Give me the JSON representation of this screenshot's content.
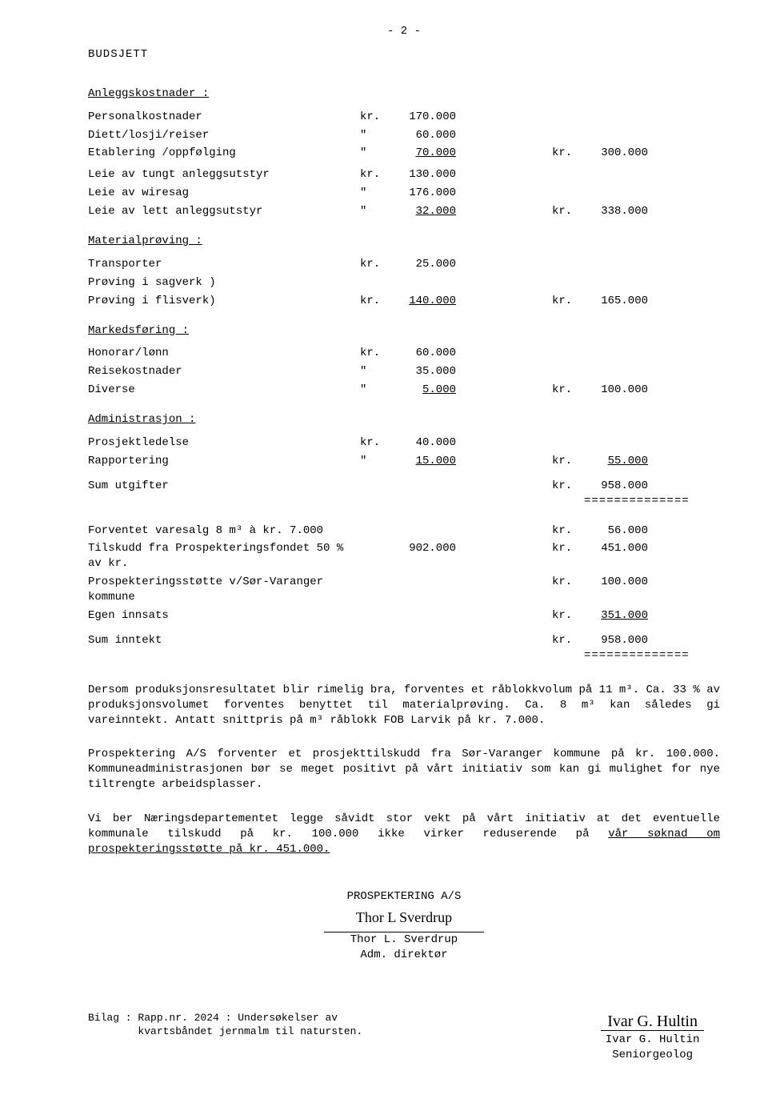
{
  "page_number": "- 2 -",
  "title": "BUDSJETT",
  "sections": {
    "anlegg": {
      "head": "Anleggskostnader :",
      "rows": [
        {
          "desc": "Personalkostnader",
          "c1": "kr.",
          "v1": "170.000",
          "c2": "",
          "v2": ""
        },
        {
          "desc": "Diett/losji/reiser",
          "c1": "\"",
          "v1": "60.000",
          "c2": "",
          "v2": ""
        },
        {
          "desc": "Etablering /oppfølging",
          "c1": "\"",
          "v1": "70.000",
          "c2": "kr.",
          "v2": "300.000",
          "u1": true
        },
        {
          "desc": "",
          "c1": "",
          "v1": "",
          "c2": "",
          "v2": ""
        },
        {
          "desc": "Leie av tungt anleggsutstyr",
          "c1": "kr.",
          "v1": "130.000",
          "c2": "",
          "v2": ""
        },
        {
          "desc": "Leie av wiresag",
          "c1": "\"",
          "v1": "176.000",
          "c2": "",
          "v2": ""
        },
        {
          "desc": "Leie av lett  anleggsutstyr",
          "c1": "\"",
          "v1": "32.000",
          "c2": "kr.",
          "v2": "338.000",
          "u1": true
        }
      ]
    },
    "material": {
      "head": "Materialprøving  :",
      "rows": [
        {
          "desc": "Transporter",
          "c1": "kr.",
          "v1": "25.000",
          "c2": "",
          "v2": ""
        },
        {
          "desc": "Prøving i sagverk )",
          "c1": "",
          "v1": "",
          "c2": "",
          "v2": ""
        },
        {
          "desc": "Prøving i flisverk)",
          "c1": "kr.",
          "v1": "140.000",
          "c2": "kr.",
          "v2": "165.000",
          "u1": true
        }
      ]
    },
    "marked": {
      "head": "Markedsføring   :",
      "rows": [
        {
          "desc": "Honorar/lønn",
          "c1": "kr.",
          "v1": "60.000",
          "c2": "",
          "v2": ""
        },
        {
          "desc": "Reisekostnader",
          "c1": "\"",
          "v1": "35.000",
          "c2": "",
          "v2": ""
        },
        {
          "desc": "Diverse",
          "c1": "\"",
          "v1": "5.000",
          "c2": "kr.",
          "v2": "100.000",
          "u1": true
        }
      ]
    },
    "admin": {
      "head": "Administrasjon  :",
      "rows": [
        {
          "desc": "Prosjektledelse",
          "c1": "kr.",
          "v1": "40.000",
          "c2": "",
          "v2": ""
        },
        {
          "desc": "Rapportering",
          "c1": "\"",
          "v1": "15.000",
          "c2": "kr.",
          "v2": "55.000",
          "u1": true,
          "u2": true
        }
      ]
    }
  },
  "sum_utgifter": {
    "desc": "Sum utgifter",
    "c2": "kr.",
    "v2": "958.000",
    "dbl": "=============="
  },
  "inntekt_rows": [
    {
      "desc": "Forventet varesalg 8 m³ à kr. 7.000",
      "c1": "",
      "v1": "",
      "c2": "kr.",
      "v2": "56.000"
    },
    {
      "desc": "Tilskudd fra Prospekteringsfondet 50 % av kr.",
      "c1": "",
      "v1": "902.000",
      "c2": "kr.",
      "v2": "451.000"
    },
    {
      "desc": "Prospekteringsstøtte v/Sør-Varanger kommune",
      "c1": "",
      "v1": "",
      "c2": "kr.",
      "v2": "100.000"
    },
    {
      "desc": "Egen innsats",
      "c1": "",
      "v1": "",
      "c2": "kr.",
      "v2": "351.000",
      "u2": true
    }
  ],
  "sum_inntekt": {
    "desc": "Sum inntekt",
    "c2": "kr.",
    "v2": "958.000",
    "dbl": "=============="
  },
  "para1": "Dersom produksjonsresultatet blir rimelig bra, forventes et råblokkvolum på 11 m³. Ca. 33 % av produksjonsvolumet forventes benyttet til materialprøving.   Ca. 8 m³ kan således gi vareinntekt.  Antatt snittpris på m³ råblokk FOB Larvik på kr. 7.000.",
  "para2": "Prospektering A/S forventer et prosjekttilskudd fra Sør-Varanger kommune på kr. 100.000.  Kommuneadministrasjonen bør se meget positivt på vårt initiativ som kan gi mulighet for nye tiltrengte arbeidsplasser.",
  "para3_a": "Vi ber Næringsdepartementet legge såvidt stor vekt på vårt initiativ at det eventuelle kommunale tilskudd på kr. 100.000 ikke virker reduserende på ",
  "para3_u": "vår søknad om prospekteringsstøtte på kr. 451.000.",
  "sig": {
    "company": "PROSPEKTERING A/S",
    "name1": "Thor L. Sverdrup",
    "title1": "Adm. direktør",
    "name2": "Ivar G. Hultin",
    "title2": "Seniorgeolog"
  },
  "bilag1": "Bilag : Rapp.nr. 2024 : Undersøkelser av",
  "bilag2": "        kvartsbåndet jernmalm til natursten."
}
